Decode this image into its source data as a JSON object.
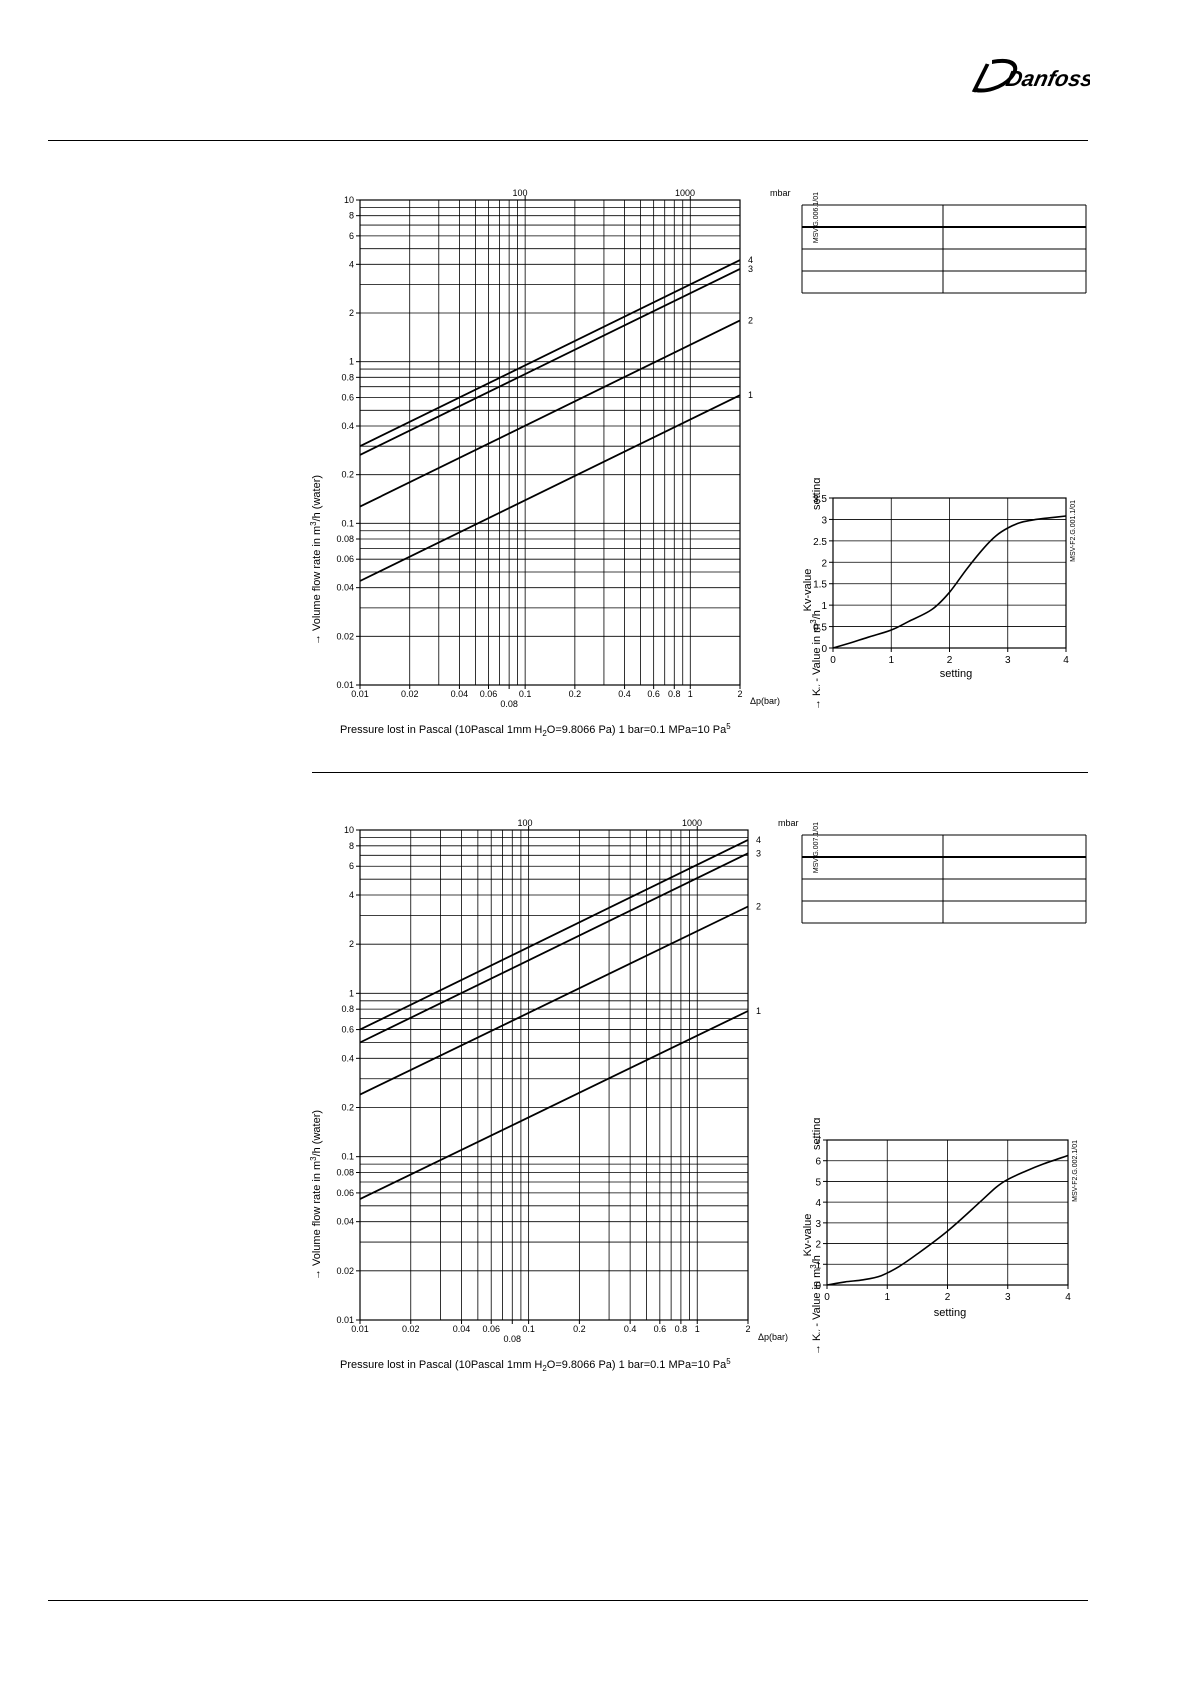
{
  "brand": {
    "logo_text": "Danfoss"
  },
  "flow_charts": [
    {
      "code": "MSV.G.006.1/01",
      "ylabel_parts": [
        "→  Volume flow rate in m",
        "3",
        "/h (water)"
      ],
      "setting_label": "setting",
      "kv_axis_parts": [
        "→  K",
        "v",
        " - Value in m",
        "3",
        "/h"
      ],
      "mbar_ticks": [
        "100",
        "1000"
      ],
      "mbar_unit": "mbar",
      "xunit": "Δp(bar)",
      "xlabel_parts": [
        "Pressure lost in Pascal (10Pascal 1mm H",
        "2",
        "O=9.8066 Pa) 1 bar=0.1 MPa=10 Pa",
        "5"
      ]
    },
    {
      "code": "MSV.G.007.1/01",
      "ylabel_parts": [
        "→  Volume flow rate in m",
        "3",
        "/h (water)"
      ],
      "setting_label": "setting",
      "kv_axis_parts": [
        "→  K",
        "v",
        " - Value in m",
        "3",
        "/h"
      ],
      "mbar_ticks": [
        "100",
        "1000"
      ],
      "mbar_unit": "mbar",
      "xunit": "Δp(bar)",
      "xlabel_parts": [
        "Pressure lost in Pascal (10Pascal 1mm H",
        "2",
        "O=9.8066 Pa) 1 bar=0.1 MPa=10 Pa",
        "5"
      ]
    }
  ],
  "kv_charts": [
    {
      "code": "MSV-F2.G.001.1/01",
      "ylabel": "Kv-value",
      "xlabel": "setting"
    },
    {
      "code": "MSV-F2.G.002.1/01",
      "ylabel": "Kv-value",
      "xlabel": "setting"
    }
  ],
  "chart_data": [
    {
      "type": "line",
      "x_scale": "log",
      "y_scale": "log",
      "xlim": [
        0.01,
        2
      ],
      "ylim": [
        0.01,
        10
      ],
      "x_ticks": [
        0.01,
        0.02,
        0.04,
        0.06,
        0.08,
        0.1,
        0.2,
        0.4,
        0.6,
        0.8,
        1,
        2
      ],
      "x_tick_labels": [
        "0.01",
        "0.02",
        "0.04",
        "0.06",
        "0.08",
        "0.1",
        "0.2",
        "0.4",
        "0.6",
        "0.8",
        "1",
        "2"
      ],
      "y_ticks": [
        0.01,
        0.02,
        0.04,
        0.06,
        0.08,
        0.1,
        0.2,
        0.4,
        0.6,
        0.8,
        1,
        2,
        4,
        6,
        8,
        10
      ],
      "y_tick_labels": [
        "0.01",
        "0.02",
        "0.04",
        "0.06",
        "0.08",
        "0.1",
        "0.2",
        "0.4",
        "0.6",
        "0.8",
        "1",
        "2",
        "4",
        "6",
        "8",
        "10"
      ],
      "grid": true,
      "series": [
        {
          "name": "1",
          "x": [
            0.01,
            2
          ],
          "y": [
            0.044,
            0.62
          ]
        },
        {
          "name": "2",
          "x": [
            0.01,
            2
          ],
          "y": [
            0.127,
            1.8
          ]
        },
        {
          "name": "3",
          "x": [
            0.01,
            2
          ],
          "y": [
            0.265,
            3.75
          ]
        },
        {
          "name": "4",
          "x": [
            0.01,
            2
          ],
          "y": [
            0.3,
            4.25
          ]
        }
      ]
    },
    {
      "type": "line",
      "xlim": [
        0,
        4
      ],
      "ylim": [
        0,
        3.5
      ],
      "x_ticks": [
        0,
        1,
        2,
        3,
        4
      ],
      "x_tick_labels": [
        "0",
        "1",
        "2",
        "3",
        "4"
      ],
      "y_ticks": [
        0,
        0.5,
        1,
        1.5,
        2,
        2.5,
        3,
        3.5
      ],
      "y_tick_labels": [
        "0",
        "0.5",
        "1",
        "1.5",
        "2",
        "2.5",
        "3",
        "3.5"
      ],
      "grid": true,
      "series": [
        {
          "x": [
            0,
            0.3,
            0.6,
            1,
            1.3,
            1.7,
            2,
            2.3,
            2.6,
            2.8,
            3,
            3.2,
            3.4,
            3.6,
            3.8,
            4
          ],
          "y": [
            0,
            0.12,
            0.25,
            0.42,
            0.62,
            0.9,
            1.3,
            1.85,
            2.35,
            2.62,
            2.8,
            2.92,
            2.98,
            3.02,
            3.05,
            3.08
          ]
        }
      ]
    },
    {
      "type": "line",
      "x_scale": "log",
      "y_scale": "log",
      "xlim": [
        0.01,
        2
      ],
      "ylim": [
        0.01,
        10
      ],
      "x_ticks": [
        0.01,
        0.02,
        0.04,
        0.06,
        0.08,
        0.1,
        0.2,
        0.4,
        0.6,
        0.8,
        1,
        2
      ],
      "x_tick_labels": [
        "0.01",
        "0.02",
        "0.04",
        "0.06",
        "0.08",
        "0.1",
        "0.2",
        "0.4",
        "0.6",
        "0.8",
        "1",
        "2"
      ],
      "y_ticks": [
        0.01,
        0.02,
        0.04,
        0.06,
        0.08,
        0.1,
        0.2,
        0.4,
        0.6,
        0.8,
        1,
        2,
        4,
        6,
        8,
        10
      ],
      "y_tick_labels": [
        "0.01",
        "0.02",
        "0.04",
        "0.06",
        "0.08",
        "0.1",
        "0.2",
        "0.4",
        "0.6",
        "0.8",
        "1",
        "2",
        "4",
        "6",
        "8",
        "10"
      ],
      "grid": true,
      "series": [
        {
          "name": "1",
          "x": [
            0.01,
            2
          ],
          "y": [
            0.055,
            0.78
          ]
        },
        {
          "name": "2",
          "x": [
            0.01,
            2
          ],
          "y": [
            0.24,
            3.4
          ]
        },
        {
          "name": "3",
          "x": [
            0.01,
            2
          ],
          "y": [
            0.5,
            7.2
          ]
        },
        {
          "name": "4",
          "x": [
            0.01,
            2
          ],
          "y": [
            0.6,
            8.7
          ]
        }
      ]
    },
    {
      "type": "line",
      "xlim": [
        0,
        4
      ],
      "ylim": [
        0,
        7
      ],
      "x_ticks": [
        0,
        1,
        2,
        3,
        4
      ],
      "x_tick_labels": [
        "0",
        "1",
        "2",
        "3",
        "4"
      ],
      "y_ticks": [
        0,
        1,
        2,
        3,
        4,
        5,
        6,
        7
      ],
      "y_tick_labels": [
        "0",
        "1",
        "2",
        "3",
        "4",
        "5",
        "6",
        "7"
      ],
      "grid": true,
      "series": [
        {
          "x": [
            0,
            0.3,
            0.6,
            0.9,
            1.2,
            1.5,
            2,
            2.5,
            2.8,
            3,
            3.3,
            3.6,
            4
          ],
          "y": [
            0,
            0.15,
            0.25,
            0.45,
            0.9,
            1.5,
            2.6,
            3.9,
            4.7,
            5.1,
            5.5,
            5.85,
            6.25
          ]
        }
      ]
    }
  ],
  "setting_tables": [
    {
      "header": [
        "",
        ""
      ],
      "rows": [
        [
          "",
          ""
        ],
        [
          "",
          ""
        ],
        [
          "",
          ""
        ],
        [
          "",
          ""
        ]
      ]
    },
    {
      "header": [
        "",
        ""
      ],
      "rows": [
        [
          "",
          ""
        ],
        [
          "",
          ""
        ],
        [
          "",
          ""
        ],
        [
          "",
          ""
        ]
      ]
    }
  ]
}
